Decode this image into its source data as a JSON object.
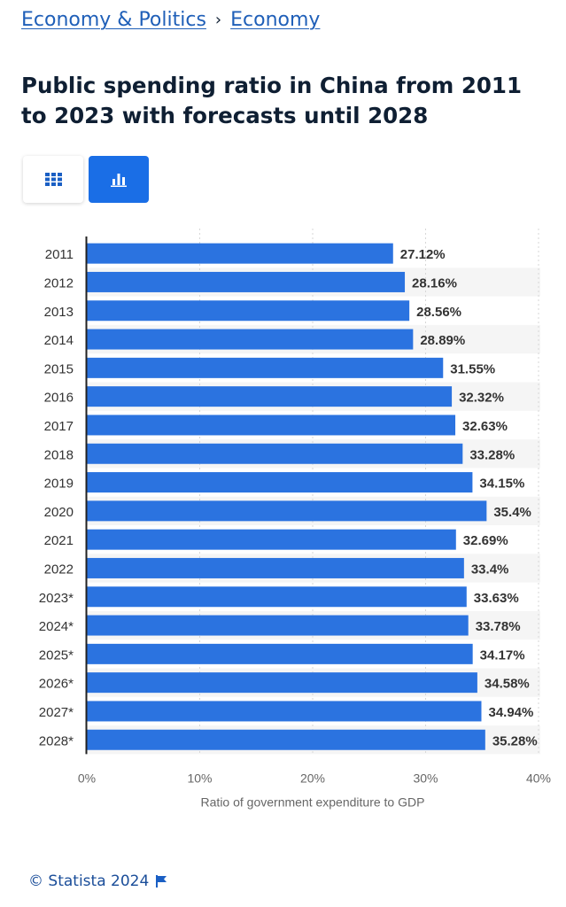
{
  "breadcrumb": {
    "items": [
      "Economy & Politics",
      "Economy"
    ],
    "separator": "›"
  },
  "title": "Public spending ratio in China from 2011 to 2023 with forecasts until 2028",
  "view_toggle": {
    "table_icon": "grid-icon",
    "chart_icon": "bar-chart-icon",
    "active": "chart"
  },
  "chart_data": {
    "type": "bar",
    "orientation": "horizontal",
    "title": "Public spending ratio in China from 2011 to 2023 with forecasts until 2028",
    "categories": [
      "2011",
      "2012",
      "2013",
      "2014",
      "2015",
      "2016",
      "2017",
      "2018",
      "2019",
      "2020",
      "2021",
      "2022",
      "2023*",
      "2024*",
      "2025*",
      "2026*",
      "2027*",
      "2028*"
    ],
    "values": [
      27.12,
      28.16,
      28.56,
      28.89,
      31.55,
      32.32,
      32.63,
      33.28,
      34.15,
      35.4,
      32.69,
      33.4,
      33.63,
      33.78,
      34.17,
      34.58,
      34.94,
      35.28
    ],
    "value_labels": [
      "27.12%",
      "28.16%",
      "28.56%",
      "28.89%",
      "31.55%",
      "32.32%",
      "32.63%",
      "33.28%",
      "34.15%",
      "35.4%",
      "32.69%",
      "33.4%",
      "33.63%",
      "33.78%",
      "34.17%",
      "34.58%",
      "34.94%",
      "35.28%"
    ],
    "xlim": [
      0,
      40
    ],
    "xticks": [
      0,
      10,
      20,
      30,
      40
    ],
    "xtick_labels": [
      "0%",
      "10%",
      "20%",
      "30%",
      "40%"
    ],
    "xlabel": "Ratio of government expenditure to GDP",
    "ylabel": "",
    "grid": true,
    "colors": {
      "bar": "#2b73e0",
      "grid": "#d7d7d7",
      "band": "#f5f5f5",
      "axis": "#222222",
      "tick_text": "#666666",
      "category_text": "#333333",
      "value_text": "#333333"
    }
  },
  "footer": {
    "copyright": "© Statista 2024",
    "flag_icon": "flag-icon"
  }
}
